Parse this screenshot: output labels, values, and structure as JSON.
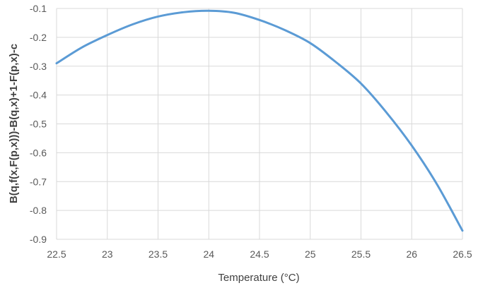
{
  "chart_data": {
    "type": "line",
    "title": "",
    "xlabel": "Temperature (°C)",
    "ylabel": "B(q,f(x,F(p,x)))-B(q,x)+1-F(p,x)-c",
    "xlim": [
      22.5,
      26.5
    ],
    "ylim": [
      -0.9,
      -0.1
    ],
    "xticks": [
      "22.5",
      "23",
      "23.5",
      "24",
      "24.5",
      "25",
      "25.5",
      "26",
      "26.5"
    ],
    "yticks": [
      "-0.1",
      "-0.2",
      "-0.3",
      "-0.4",
      "-0.5",
      "-0.6",
      "-0.7",
      "-0.8",
      "-0.9"
    ],
    "grid": true,
    "line_color": "#5b9bd5",
    "series": [
      {
        "x": [
          22.5,
          22.75,
          23,
          23.25,
          23.5,
          23.75,
          24,
          24.25,
          24.5,
          24.75,
          25,
          25.25,
          25.5,
          25.75,
          26,
          26.25,
          26.5
        ],
        "values": [
          -0.29,
          -0.235,
          -0.192,
          -0.155,
          -0.128,
          -0.113,
          -0.108,
          -0.115,
          -0.14,
          -0.175,
          -0.22,
          -0.285,
          -0.36,
          -0.46,
          -0.575,
          -0.71,
          -0.87
        ]
      }
    ]
  }
}
